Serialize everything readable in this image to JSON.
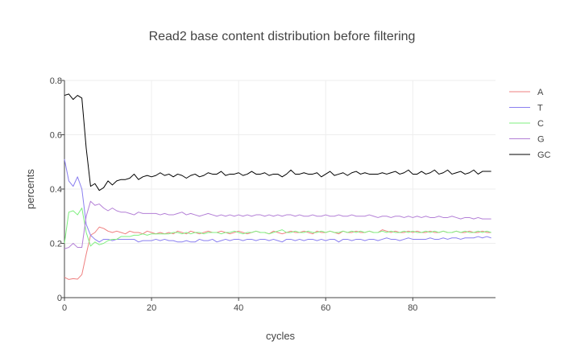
{
  "chart_data": {
    "type": "line",
    "title": "Read2 base content distribution before filtering",
    "xlabel": "cycles",
    "ylabel": "percents",
    "xlim": [
      0,
      99
    ],
    "ylim": [
      0,
      0.8
    ],
    "x_ticks": [
      0,
      20,
      40,
      60,
      80
    ],
    "y_ticks": [
      0,
      0.2,
      0.4,
      0.6,
      0.8
    ],
    "x_tick_labels": [
      "0",
      "20",
      "40",
      "60",
      "80"
    ],
    "y_tick_labels": [
      "0",
      "0.2",
      "0.4",
      "0.6",
      "0.8"
    ],
    "grid": true,
    "legend_position": "right",
    "series": [
      {
        "name": "A",
        "color": "#ef7f7f",
        "values": [
          0.075,
          0.067,
          0.07,
          0.068,
          0.085,
          0.16,
          0.23,
          0.24,
          0.26,
          0.255,
          0.245,
          0.24,
          0.245,
          0.24,
          0.235,
          0.245,
          0.24,
          0.24,
          0.235,
          0.245,
          0.24,
          0.235,
          0.24,
          0.235,
          0.24,
          0.235,
          0.245,
          0.24,
          0.235,
          0.245,
          0.24,
          0.235,
          0.24,
          0.245,
          0.24,
          0.24,
          0.245,
          0.24,
          0.235,
          0.24,
          0.245,
          0.24,
          0.235,
          0.24,
          0.245,
          0.24,
          0.24,
          0.235,
          0.245,
          0.24,
          0.235,
          0.24,
          0.245,
          0.24,
          0.24,
          0.245,
          0.24,
          0.235,
          0.245,
          0.24,
          0.24,
          0.245,
          0.24,
          0.235,
          0.245,
          0.24,
          0.24,
          0.245,
          0.24,
          0.24,
          0.245,
          0.24,
          0.24,
          0.25,
          0.245,
          0.24,
          0.245,
          0.24,
          0.24,
          0.245,
          0.24,
          0.245,
          0.24,
          0.24,
          0.245,
          0.24,
          0.24,
          0.245,
          0.24,
          0.24,
          0.245,
          0.24,
          0.24,
          0.245,
          0.24,
          0.24,
          0.245,
          0.24,
          0.24
        ]
      },
      {
        "name": "T",
        "color": "#8a7ff0",
        "values": [
          0.51,
          0.43,
          0.41,
          0.445,
          0.4,
          0.27,
          0.23,
          0.215,
          0.205,
          0.215,
          0.215,
          0.21,
          0.215,
          0.215,
          0.215,
          0.215,
          0.215,
          0.205,
          0.21,
          0.21,
          0.21,
          0.215,
          0.21,
          0.215,
          0.21,
          0.21,
          0.205,
          0.205,
          0.21,
          0.205,
          0.205,
          0.215,
          0.21,
          0.21,
          0.215,
          0.205,
          0.21,
          0.215,
          0.21,
          0.215,
          0.215,
          0.21,
          0.215,
          0.215,
          0.21,
          0.215,
          0.215,
          0.21,
          0.215,
          0.21,
          0.205,
          0.215,
          0.215,
          0.21,
          0.215,
          0.21,
          0.215,
          0.215,
          0.21,
          0.215,
          0.21,
          0.215,
          0.215,
          0.205,
          0.215,
          0.215,
          0.21,
          0.215,
          0.215,
          0.21,
          0.215,
          0.215,
          0.21,
          0.215,
          0.22,
          0.215,
          0.215,
          0.21,
          0.215,
          0.22,
          0.215,
          0.215,
          0.215,
          0.215,
          0.22,
          0.215,
          0.215,
          0.22,
          0.215,
          0.22,
          0.22,
          0.215,
          0.22,
          0.22,
          0.22,
          0.225,
          0.22,
          0.225,
          0.22
        ]
      },
      {
        "name": "C",
        "color": "#7fef7f",
        "values": [
          0.2,
          0.315,
          0.32,
          0.305,
          0.33,
          0.24,
          0.19,
          0.205,
          0.195,
          0.2,
          0.21,
          0.215,
          0.215,
          0.225,
          0.225,
          0.225,
          0.23,
          0.23,
          0.235,
          0.23,
          0.235,
          0.235,
          0.235,
          0.235,
          0.235,
          0.24,
          0.24,
          0.235,
          0.24,
          0.235,
          0.24,
          0.24,
          0.235,
          0.24,
          0.24,
          0.24,
          0.235,
          0.24,
          0.24,
          0.245,
          0.24,
          0.235,
          0.24,
          0.24,
          0.245,
          0.24,
          0.24,
          0.235,
          0.24,
          0.245,
          0.25,
          0.24,
          0.24,
          0.245,
          0.24,
          0.24,
          0.245,
          0.24,
          0.24,
          0.245,
          0.24,
          0.245,
          0.24,
          0.24,
          0.245,
          0.24,
          0.245,
          0.24,
          0.245,
          0.24,
          0.245,
          0.24,
          0.24,
          0.245,
          0.24,
          0.245,
          0.24,
          0.24,
          0.245,
          0.24,
          0.245,
          0.24,
          0.24,
          0.245,
          0.24,
          0.245,
          0.24,
          0.245,
          0.24,
          0.24,
          0.245,
          0.24,
          0.245,
          0.24,
          0.24,
          0.245,
          0.24,
          0.245,
          0.24
        ]
      },
      {
        "name": "G",
        "color": "#b37fd6",
        "values": [
          0.18,
          0.185,
          0.2,
          0.185,
          0.185,
          0.3,
          0.355,
          0.34,
          0.345,
          0.33,
          0.32,
          0.33,
          0.32,
          0.315,
          0.315,
          0.31,
          0.305,
          0.315,
          0.31,
          0.31,
          0.31,
          0.31,
          0.305,
          0.31,
          0.305,
          0.305,
          0.31,
          0.315,
          0.305,
          0.31,
          0.305,
          0.3,
          0.305,
          0.31,
          0.305,
          0.3,
          0.305,
          0.3,
          0.305,
          0.3,
          0.305,
          0.3,
          0.305,
          0.3,
          0.305,
          0.305,
          0.3,
          0.305,
          0.3,
          0.305,
          0.3,
          0.305,
          0.305,
          0.3,
          0.305,
          0.3,
          0.3,
          0.305,
          0.3,
          0.3,
          0.305,
          0.3,
          0.3,
          0.305,
          0.3,
          0.3,
          0.305,
          0.3,
          0.3,
          0.3,
          0.305,
          0.3,
          0.295,
          0.3,
          0.3,
          0.295,
          0.3,
          0.3,
          0.295,
          0.3,
          0.295,
          0.3,
          0.295,
          0.3,
          0.295,
          0.295,
          0.3,
          0.295,
          0.295,
          0.3,
          0.295,
          0.29,
          0.295,
          0.295,
          0.29,
          0.295,
          0.29,
          0.29,
          0.29
        ]
      },
      {
        "name": "GC",
        "color": "#000000",
        "values": [
          0.745,
          0.75,
          0.73,
          0.745,
          0.735,
          0.55,
          0.41,
          0.42,
          0.395,
          0.405,
          0.43,
          0.415,
          0.43,
          0.435,
          0.435,
          0.44,
          0.455,
          0.435,
          0.445,
          0.45,
          0.445,
          0.45,
          0.46,
          0.45,
          0.455,
          0.445,
          0.455,
          0.45,
          0.44,
          0.45,
          0.455,
          0.445,
          0.45,
          0.46,
          0.455,
          0.455,
          0.465,
          0.45,
          0.455,
          0.455,
          0.46,
          0.45,
          0.455,
          0.465,
          0.455,
          0.455,
          0.46,
          0.45,
          0.455,
          0.455,
          0.445,
          0.455,
          0.47,
          0.455,
          0.455,
          0.46,
          0.455,
          0.455,
          0.46,
          0.445,
          0.455,
          0.465,
          0.45,
          0.455,
          0.46,
          0.45,
          0.46,
          0.465,
          0.455,
          0.46,
          0.455,
          0.455,
          0.455,
          0.46,
          0.455,
          0.46,
          0.465,
          0.455,
          0.46,
          0.47,
          0.455,
          0.455,
          0.465,
          0.455,
          0.46,
          0.47,
          0.455,
          0.46,
          0.47,
          0.455,
          0.46,
          0.465,
          0.455,
          0.46,
          0.47,
          0.455,
          0.465,
          0.465,
          0.465
        ]
      }
    ]
  }
}
